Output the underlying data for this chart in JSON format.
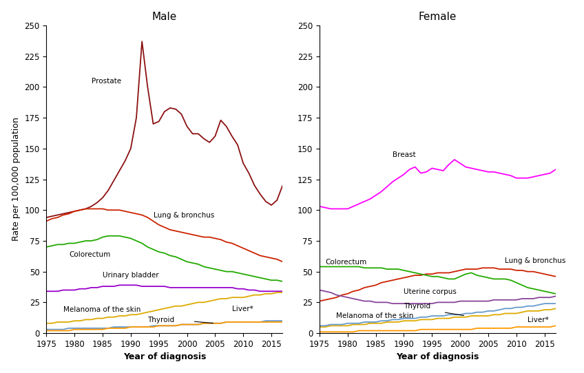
{
  "title_male": "Male",
  "title_female": "Female",
  "xlabel": "Year of diagnosis",
  "ylabel": "Rate per 100,000 population",
  "ylim": [
    0,
    250
  ],
  "yticks": [
    0,
    25,
    50,
    75,
    100,
    125,
    150,
    175,
    200,
    225,
    250
  ],
  "xlim": [
    1975,
    2017
  ],
  "xticks": [
    1975,
    1980,
    1985,
    1990,
    1995,
    2000,
    2005,
    2010,
    2015
  ],
  "male": {
    "years": [
      1975,
      1976,
      1977,
      1978,
      1979,
      1980,
      1981,
      1982,
      1983,
      1984,
      1985,
      1986,
      1987,
      1988,
      1989,
      1990,
      1991,
      1992,
      1993,
      1994,
      1995,
      1996,
      1997,
      1998,
      1999,
      2000,
      2001,
      2002,
      2003,
      2004,
      2005,
      2006,
      2007,
      2008,
      2009,
      2010,
      2011,
      2012,
      2013,
      2014,
      2015,
      2016,
      2017
    ],
    "Prostate": [
      94,
      95,
      96,
      97,
      98,
      99,
      100,
      101,
      103,
      106,
      110,
      116,
      124,
      132,
      140,
      150,
      175,
      237,
      200,
      170,
      172,
      180,
      183,
      182,
      178,
      168,
      162,
      162,
      158,
      155,
      160,
      173,
      168,
      160,
      153,
      138,
      130,
      120,
      113,
      107,
      104,
      108,
      120
    ],
    "Lung & bronchus": [
      91,
      93,
      94,
      96,
      97,
      99,
      100,
      101,
      101,
      101,
      101,
      100,
      100,
      100,
      99,
      98,
      97,
      96,
      94,
      91,
      88,
      86,
      84,
      83,
      82,
      81,
      80,
      79,
      78,
      78,
      77,
      76,
      74,
      73,
      71,
      69,
      67,
      65,
      63,
      62,
      61,
      60,
      58
    ],
    "Colorectum": [
      70,
      71,
      72,
      72,
      73,
      73,
      74,
      75,
      75,
      76,
      78,
      79,
      79,
      79,
      78,
      77,
      75,
      73,
      70,
      68,
      66,
      65,
      63,
      62,
      60,
      58,
      57,
      56,
      54,
      53,
      52,
      51,
      50,
      50,
      49,
      48,
      47,
      46,
      45,
      44,
      43,
      43,
      42
    ],
    "Urinary bladder": [
      34,
      34,
      34,
      35,
      35,
      35,
      36,
      36,
      37,
      37,
      38,
      38,
      38,
      39,
      39,
      39,
      39,
      38,
      38,
      38,
      38,
      38,
      37,
      37,
      37,
      37,
      37,
      37,
      37,
      37,
      37,
      37,
      37,
      37,
      36,
      36,
      35,
      35,
      34,
      34,
      34,
      34,
      34
    ],
    "Melanoma of the skin": [
      8,
      8,
      9,
      9,
      9,
      10,
      10,
      11,
      11,
      12,
      12,
      13,
      13,
      14,
      14,
      15,
      15,
      16,
      17,
      18,
      19,
      20,
      21,
      22,
      22,
      23,
      24,
      25,
      25,
      26,
      27,
      28,
      28,
      29,
      29,
      29,
      30,
      31,
      31,
      32,
      32,
      33,
      33
    ],
    "Thyroid": [
      3,
      3,
      3,
      3,
      4,
      4,
      4,
      4,
      4,
      4,
      4,
      4,
      5,
      5,
      5,
      5,
      5,
      5,
      5,
      6,
      6,
      6,
      6,
      6,
      7,
      7,
      7,
      7,
      8,
      8,
      8,
      8,
      9,
      9,
      9,
      9,
      9,
      9,
      9,
      10,
      10,
      10,
      10
    ],
    "Liver*": [
      2,
      2,
      2,
      2,
      2,
      3,
      3,
      3,
      3,
      3,
      3,
      4,
      4,
      4,
      4,
      5,
      5,
      5,
      5,
      5,
      6,
      6,
      6,
      6,
      7,
      7,
      7,
      7,
      8,
      8,
      8,
      8,
      9,
      9,
      9,
      9,
      9,
      9,
      9,
      9,
      9,
      9,
      9
    ]
  },
  "female": {
    "years": [
      1975,
      1976,
      1977,
      1978,
      1979,
      1980,
      1981,
      1982,
      1983,
      1984,
      1985,
      1986,
      1987,
      1988,
      1989,
      1990,
      1991,
      1992,
      1993,
      1994,
      1995,
      1996,
      1997,
      1998,
      1999,
      2000,
      2001,
      2002,
      2003,
      2004,
      2005,
      2006,
      2007,
      2008,
      2009,
      2010,
      2011,
      2012,
      2013,
      2014,
      2015,
      2016,
      2017
    ],
    "Breast": [
      103,
      102,
      101,
      101,
      101,
      101,
      103,
      105,
      107,
      109,
      112,
      115,
      119,
      123,
      126,
      129,
      133,
      135,
      130,
      131,
      134,
      133,
      132,
      137,
      141,
      138,
      135,
      134,
      133,
      132,
      131,
      131,
      130,
      129,
      128,
      126,
      126,
      126,
      127,
      128,
      129,
      130,
      133
    ],
    "Lung & bronchus": [
      26,
      27,
      28,
      29,
      31,
      32,
      34,
      35,
      37,
      38,
      39,
      41,
      42,
      43,
      44,
      45,
      46,
      47,
      47,
      48,
      48,
      49,
      49,
      49,
      50,
      51,
      52,
      52,
      52,
      53,
      53,
      53,
      52,
      52,
      52,
      51,
      51,
      50,
      50,
      49,
      48,
      47,
      46
    ],
    "Colorectum": [
      54,
      54,
      54,
      54,
      54,
      54,
      54,
      54,
      53,
      53,
      53,
      53,
      52,
      52,
      52,
      51,
      50,
      49,
      48,
      47,
      46,
      46,
      45,
      44,
      44,
      46,
      48,
      49,
      47,
      46,
      45,
      44,
      44,
      44,
      43,
      41,
      39,
      37,
      36,
      35,
      34,
      33,
      32
    ],
    "Uterine corpus": [
      35,
      34,
      33,
      31,
      30,
      29,
      28,
      27,
      26,
      26,
      25,
      25,
      25,
      24,
      24,
      24,
      24,
      24,
      24,
      24,
      24,
      25,
      25,
      25,
      25,
      26,
      26,
      26,
      26,
      26,
      26,
      27,
      27,
      27,
      27,
      27,
      28,
      28,
      28,
      29,
      29,
      29,
      30
    ],
    "Melanoma of the skin": [
      5,
      5,
      6,
      6,
      6,
      6,
      7,
      7,
      7,
      8,
      8,
      8,
      9,
      9,
      9,
      10,
      10,
      10,
      11,
      11,
      11,
      12,
      12,
      12,
      13,
      13,
      13,
      14,
      14,
      14,
      14,
      15,
      15,
      16,
      16,
      16,
      17,
      18,
      18,
      18,
      19,
      19,
      20
    ],
    "Thyroid": [
      6,
      6,
      7,
      7,
      7,
      8,
      8,
      8,
      9,
      9,
      9,
      10,
      10,
      11,
      11,
      12,
      12,
      12,
      13,
      13,
      14,
      14,
      14,
      15,
      15,
      15,
      16,
      16,
      17,
      17,
      18,
      18,
      19,
      20,
      20,
      21,
      21,
      22,
      22,
      23,
      24,
      24,
      24
    ],
    "Liver*": [
      1,
      1,
      1,
      1,
      1,
      1,
      1,
      2,
      2,
      2,
      2,
      2,
      2,
      2,
      2,
      2,
      2,
      2,
      3,
      3,
      3,
      3,
      3,
      3,
      3,
      3,
      3,
      3,
      4,
      4,
      4,
      4,
      4,
      4,
      4,
      5,
      5,
      5,
      5,
      5,
      5,
      5,
      6
    ]
  },
  "colors": {
    "Prostate": "#8B1010",
    "Lung & bronchus_male": "#CC2200",
    "Lung & bronchus_female": "#CC2200",
    "Colorectum": "#22AA00",
    "Urinary bladder": "#9900CC",
    "Melanoma of the skin": "#DDAA00",
    "Thyroid": "#6699CC",
    "Liver*": "#FF9900",
    "Breast": "#FF00FF",
    "Uterine corpus": "#884499"
  },
  "background_color": "#FFFFFF",
  "linewidth": 1.3
}
